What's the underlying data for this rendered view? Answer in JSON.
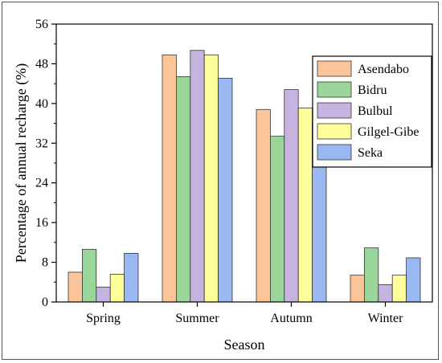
{
  "chart_data": {
    "type": "bar",
    "title": "",
    "xlabel": "Season",
    "ylabel": "Percentage of annual recharge (%)",
    "categories": [
      "Spring",
      "Summer",
      "Autumn",
      "Winter"
    ],
    "ylim": [
      0,
      56
    ],
    "yticks": [
      0,
      8,
      16,
      24,
      32,
      40,
      48,
      56
    ],
    "grid": false,
    "legend_position": "top-right",
    "series": [
      {
        "name": "Asendabo",
        "color": "#FBC599",
        "values": [
          6.0,
          49.8,
          38.8,
          5.4
        ]
      },
      {
        "name": "Bidru",
        "color": "#9AD69A",
        "values": [
          10.6,
          45.4,
          33.4,
          10.9
        ]
      },
      {
        "name": "Bulbul",
        "color": "#C6B3DF",
        "values": [
          3.0,
          50.7,
          42.8,
          3.5
        ]
      },
      {
        "name": "Gilgel-Gibe",
        "color": "#FEFE9A",
        "values": [
          5.6,
          49.8,
          39.1,
          5.4
        ]
      },
      {
        "name": "Seka",
        "color": "#99B7F0",
        "values": [
          9.8,
          45.1,
          36.2,
          8.9
        ]
      }
    ]
  }
}
